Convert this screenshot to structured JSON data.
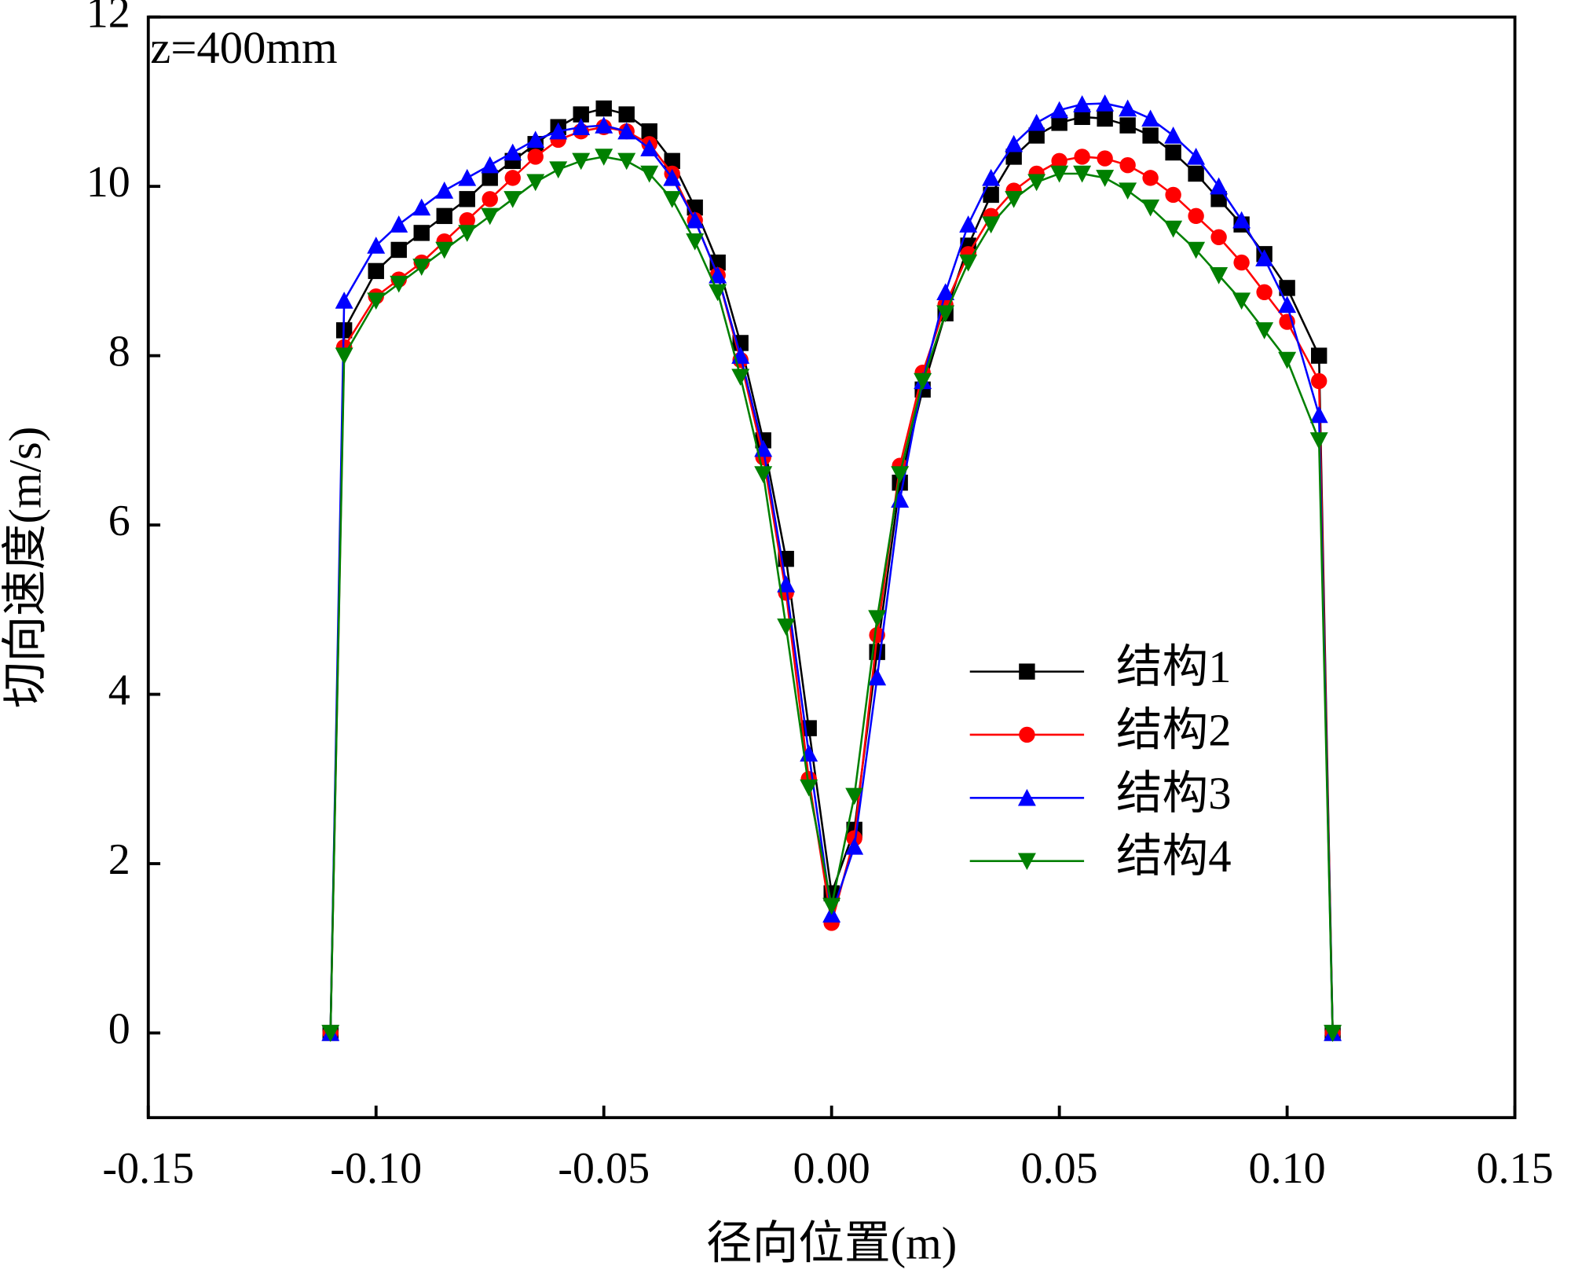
{
  "chart_data": {
    "type": "line",
    "annotation": "z=400mm",
    "xlabel": "径向位置(m)",
    "ylabel": "切向速度(m/s)",
    "xlim": [
      -0.15,
      0.15
    ],
    "ylim": [
      -1,
      12
    ],
    "xticks": [
      {
        "value": -0.15,
        "label": "-0.15"
      },
      {
        "value": -0.1,
        "label": "-0.10"
      },
      -0.05,
      {
        "value": 0,
        "label": "0.00"
      },
      0.05,
      {
        "value": 0.1,
        "label": "0.10"
      },
      0.15
    ],
    "yticks": [
      0,
      2,
      4,
      6,
      8,
      10,
      12
    ],
    "legend": "center right",
    "x": [
      -0.11,
      -0.107,
      -0.1,
      -0.095,
      -0.09,
      -0.085,
      -0.08,
      -0.075,
      -0.07,
      -0.065,
      -0.06,
      -0.055,
      -0.05,
      -0.045,
      -0.04,
      -0.035,
      -0.03,
      -0.025,
      -0.02,
      -0.015,
      -0.01,
      -0.005,
      0,
      0.005,
      0.01,
      0.015,
      0.02,
      0.025,
      0.03,
      0.035,
      0.04,
      0.045,
      0.05,
      0.055,
      0.06,
      0.065,
      0.07,
      0.075,
      0.08,
      0.085,
      0.09,
      0.095,
      0.1,
      0.107,
      0.11
    ],
    "series": [
      {
        "name": "结构1",
        "color": "#000000",
        "marker": "square",
        "values": [
          0,
          8.3,
          9.0,
          9.25,
          9.45,
          9.65,
          9.85,
          10.1,
          10.3,
          10.5,
          10.7,
          10.85,
          10.92,
          10.85,
          10.65,
          10.3,
          9.75,
          9.1,
          8.15,
          7.0,
          5.6,
          3.6,
          1.65,
          2.4,
          4.5,
          6.5,
          7.6,
          8.5,
          9.3,
          9.9,
          10.35,
          10.6,
          10.75,
          10.82,
          10.8,
          10.72,
          10.6,
          10.4,
          10.15,
          9.85,
          9.55,
          9.2,
          8.8,
          8.0,
          0
        ]
      },
      {
        "name": "结构2",
        "color": "#ff0000",
        "marker": "circle",
        "values": [
          0,
          8.1,
          8.7,
          8.9,
          9.1,
          9.35,
          9.6,
          9.85,
          10.1,
          10.35,
          10.55,
          10.65,
          10.7,
          10.65,
          10.5,
          10.15,
          9.6,
          8.95,
          7.95,
          6.8,
          5.2,
          3.0,
          1.3,
          2.3,
          4.7,
          6.7,
          7.8,
          8.6,
          9.2,
          9.65,
          9.95,
          10.15,
          10.3,
          10.35,
          10.33,
          10.25,
          10.1,
          9.9,
          9.65,
          9.4,
          9.1,
          8.75,
          8.4,
          7.7,
          0
        ]
      },
      {
        "name": "结构3",
        "color": "#0000ff",
        "marker": "triangle-up",
        "values": [
          0,
          8.65,
          9.3,
          9.55,
          9.75,
          9.95,
          10.1,
          10.25,
          10.4,
          10.55,
          10.65,
          10.7,
          10.72,
          10.65,
          10.45,
          10.1,
          9.6,
          8.95,
          8.0,
          6.9,
          5.3,
          3.3,
          1.4,
          2.2,
          4.2,
          6.3,
          7.7,
          8.75,
          9.55,
          10.1,
          10.5,
          10.75,
          10.9,
          10.97,
          10.98,
          10.92,
          10.8,
          10.6,
          10.35,
          10.0,
          9.6,
          9.15,
          8.6,
          7.3,
          0
        ]
      },
      {
        "name": "结构4",
        "color": "#008000",
        "marker": "triangle-down",
        "values": [
          0,
          8.0,
          8.65,
          8.85,
          9.05,
          9.25,
          9.45,
          9.65,
          9.85,
          10.05,
          10.2,
          10.3,
          10.35,
          10.3,
          10.15,
          9.85,
          9.35,
          8.75,
          7.75,
          6.6,
          4.8,
          2.9,
          1.5,
          2.8,
          4.9,
          6.6,
          7.7,
          8.5,
          9.1,
          9.55,
          9.85,
          10.05,
          10.15,
          10.15,
          10.1,
          9.95,
          9.75,
          9.5,
          9.25,
          8.95,
          8.65,
          8.3,
          7.95,
          7.0,
          0
        ]
      }
    ]
  }
}
